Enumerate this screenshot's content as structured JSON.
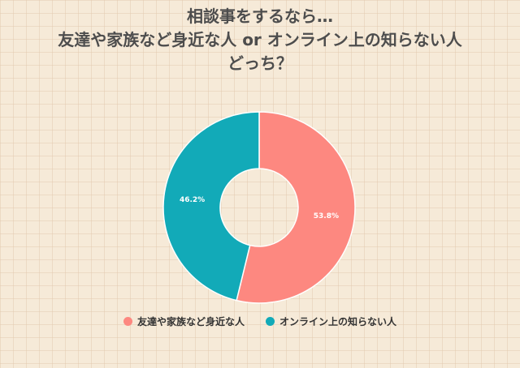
{
  "chart_data": {
    "type": "pie",
    "donut": true,
    "title_lines": [
      "相談事をするなら…",
      "友達や家族など身近な人 or オンライン上の知らない人",
      "どっち？"
    ],
    "categories": [
      "友達や家族など身近な人",
      "オンライン上の知らない人"
    ],
    "values": [
      53.8,
      46.2
    ],
    "data_labels": [
      "53.8%",
      "46.2%"
    ],
    "colors": [
      "#fd8880",
      "#12aab8"
    ],
    "legend_placement": "bottom",
    "grid": true
  }
}
